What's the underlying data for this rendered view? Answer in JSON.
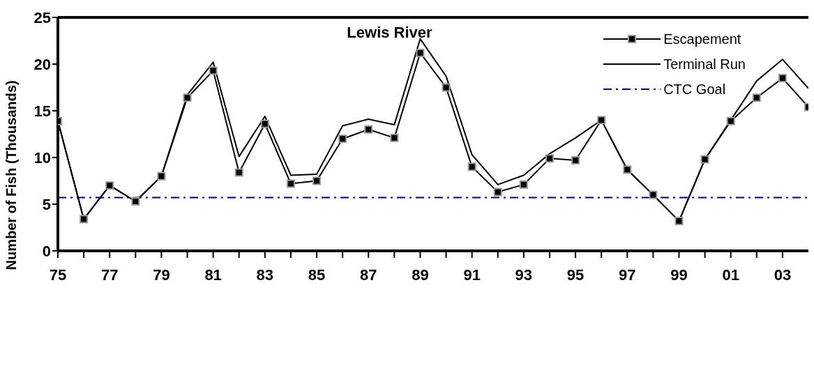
{
  "chart_data": {
    "type": "line",
    "title": "Lewis River",
    "ylabel": "Number of Fish (Thousands)",
    "x": [
      1975,
      1976,
      1977,
      1978,
      1979,
      1980,
      1981,
      1982,
      1983,
      1984,
      1985,
      1986,
      1987,
      1988,
      1989,
      1990,
      1991,
      1992,
      1993,
      1994,
      1995,
      1996,
      1997,
      1998,
      1999,
      2000,
      2001,
      2002,
      2003,
      2004
    ],
    "series": [
      {
        "name": "Escapement",
        "color": "#000000",
        "marker": "square",
        "values": [
          13.9,
          3.4,
          7.0,
          5.3,
          8.0,
          16.4,
          19.3,
          8.4,
          13.6,
          7.2,
          7.5,
          12.0,
          13.0,
          12.1,
          21.2,
          17.5,
          9.0,
          6.3,
          7.1,
          9.9,
          9.7,
          14.0,
          8.7,
          6.0,
          3.2,
          9.8,
          13.9,
          16.4,
          18.5,
          15.4
        ]
      },
      {
        "name": "Terminal Run",
        "color": "#000000",
        "marker": "none",
        "values": [
          13.9,
          3.4,
          7.0,
          5.3,
          8.0,
          16.7,
          20.2,
          10.1,
          14.4,
          8.1,
          8.2,
          13.4,
          14.1,
          13.5,
          22.7,
          18.7,
          10.3,
          7.1,
          8.1,
          10.4,
          12.1,
          14.0,
          8.7,
          6.0,
          3.2,
          9.8,
          14.0,
          18.2,
          20.5,
          17.4
        ]
      }
    ],
    "ref_lines": [
      {
        "axis": "y",
        "value": 5.7,
        "label": "CTC Goal",
        "color": "#000080",
        "line_style": "dashdot"
      }
    ],
    "xlim": [
      1975,
      2004
    ],
    "xticks": [
      {
        "value": 1975,
        "label": "75"
      },
      {
        "value": 1976,
        "label": null
      },
      {
        "value": 1977,
        "label": "77"
      },
      {
        "value": 1978,
        "label": null
      },
      {
        "value": 1979,
        "label": "79"
      },
      {
        "value": 1980,
        "label": null
      },
      {
        "value": 1981,
        "label": "81"
      },
      {
        "value": 1982,
        "label": null
      },
      {
        "value": 1983,
        "label": "83"
      },
      {
        "value": 1984,
        "label": null
      },
      {
        "value": 1985,
        "label": "85"
      },
      {
        "value": 1986,
        "label": null
      },
      {
        "value": 1987,
        "label": "87"
      },
      {
        "value": 1988,
        "label": null
      },
      {
        "value": 1989,
        "label": "89"
      },
      {
        "value": 1990,
        "label": null
      },
      {
        "value": 1991,
        "label": "91"
      },
      {
        "value": 1992,
        "label": null
      },
      {
        "value": 1993,
        "label": "93"
      },
      {
        "value": 1994,
        "label": null
      },
      {
        "value": 1995,
        "label": "95"
      },
      {
        "value": 1996,
        "label": null
      },
      {
        "value": 1997,
        "label": "97"
      },
      {
        "value": 1998,
        "label": null
      },
      {
        "value": 1999,
        "label": "99"
      },
      {
        "value": 2000,
        "label": null
      },
      {
        "value": 2001,
        "label": "01"
      },
      {
        "value": 2002,
        "label": null
      },
      {
        "value": 2003,
        "label": "03"
      }
    ],
    "ylim": [
      0,
      25
    ],
    "yticks": [
      0,
      5,
      10,
      15,
      20,
      25
    ],
    "grid": false,
    "legend": "top right"
  }
}
